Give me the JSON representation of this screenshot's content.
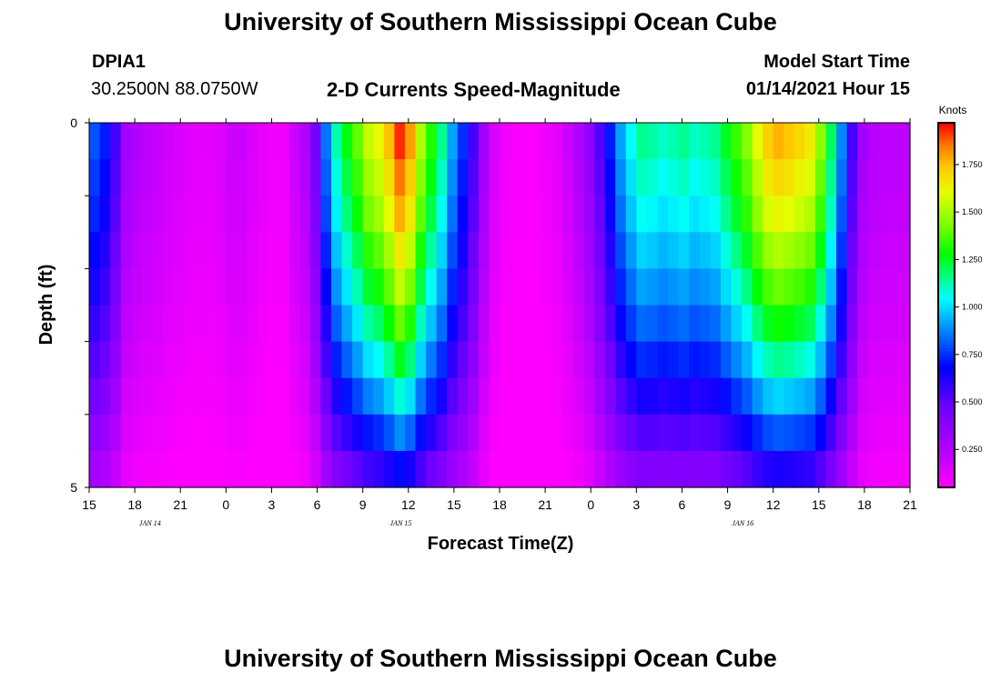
{
  "page": {
    "title_top": "University of Southern Mississippi Ocean Cube",
    "title_bottom": "University of Southern Mississippi Ocean Cube",
    "station_id": "DPIA1",
    "station_coords": "30.2500N 88.0750W",
    "plot_title": "2-D Currents Speed-Magnitude",
    "model_start_label": "Model Start Time",
    "model_start_value": "01/14/2021 Hour 15"
  },
  "chart_data": {
    "type": "heatmap",
    "title": "2-D Currents Speed-Magnitude",
    "xlabel": "Forecast Time(Z)",
    "ylabel": "Depth (ft)",
    "colorbar_label": "Knots",
    "x_tick_labels": [
      "15",
      "18",
      "21",
      "0",
      "3",
      "6",
      "9",
      "12",
      "15",
      "18",
      "21",
      "0",
      "3",
      "6",
      "9",
      "12",
      "15",
      "18",
      "21"
    ],
    "date_labels": [
      {
        "text": "JAN 14",
        "hour": 4
      },
      {
        "text": "JAN 15",
        "hour": 20.5
      },
      {
        "text": "JAN 16",
        "hour": 43
      }
    ],
    "x_range_hours": [
      0,
      54
    ],
    "y_tick_labels": [
      "0",
      "5"
    ],
    "ylim": [
      0,
      5
    ],
    "depth_levels": [
      0.25,
      0.75,
      1.25,
      1.75,
      2.25,
      2.75,
      3.25,
      3.75,
      4.25,
      4.75
    ],
    "colorbar_ticks": [
      0.25,
      0.5,
      0.75,
      1.0,
      1.25,
      1.5,
      1.75
    ],
    "colorbar_tick_labels": [
      "0.250",
      "0.500",
      "0.750",
      "1.000",
      "1.250",
      "1.500",
      "1.750"
    ],
    "colorbar_range": [
      0.05,
      1.97
    ],
    "surface_speed_knots": [
      0.8,
      0.72,
      0.55,
      0.3,
      0.25,
      0.22,
      0.2,
      0.17,
      0.15,
      0.13,
      0.12,
      0.12,
      0.14,
      0.18,
      0.18,
      0.14,
      0.11,
      0.09,
      0.09,
      0.18,
      0.25,
      0.45,
      0.85,
      1.12,
      1.27,
      1.4,
      1.55,
      1.62,
      1.75,
      1.93,
      1.8,
      1.52,
      1.32,
      1.15,
      0.92,
      0.75,
      0.55,
      0.3,
      0.15,
      0.09,
      0.07,
      0.06,
      0.07,
      0.09,
      0.12,
      0.18,
      0.25,
      0.35,
      0.52,
      0.72,
      0.92,
      1.05,
      1.15,
      1.13,
      1.1,
      1.12,
      1.15,
      1.1,
      1.12,
      1.15,
      1.25,
      1.35,
      1.45,
      1.6,
      1.72,
      1.77,
      1.74,
      1.7,
      1.65,
      1.47,
      1.2,
      0.88,
      0.55,
      0.3,
      0.24,
      0.22,
      0.22,
      0.22
    ],
    "depth_factor": [
      1.0,
      0.96,
      0.92,
      0.86,
      0.8,
      0.73,
      0.65,
      0.56,
      0.46,
      0.36
    ]
  }
}
